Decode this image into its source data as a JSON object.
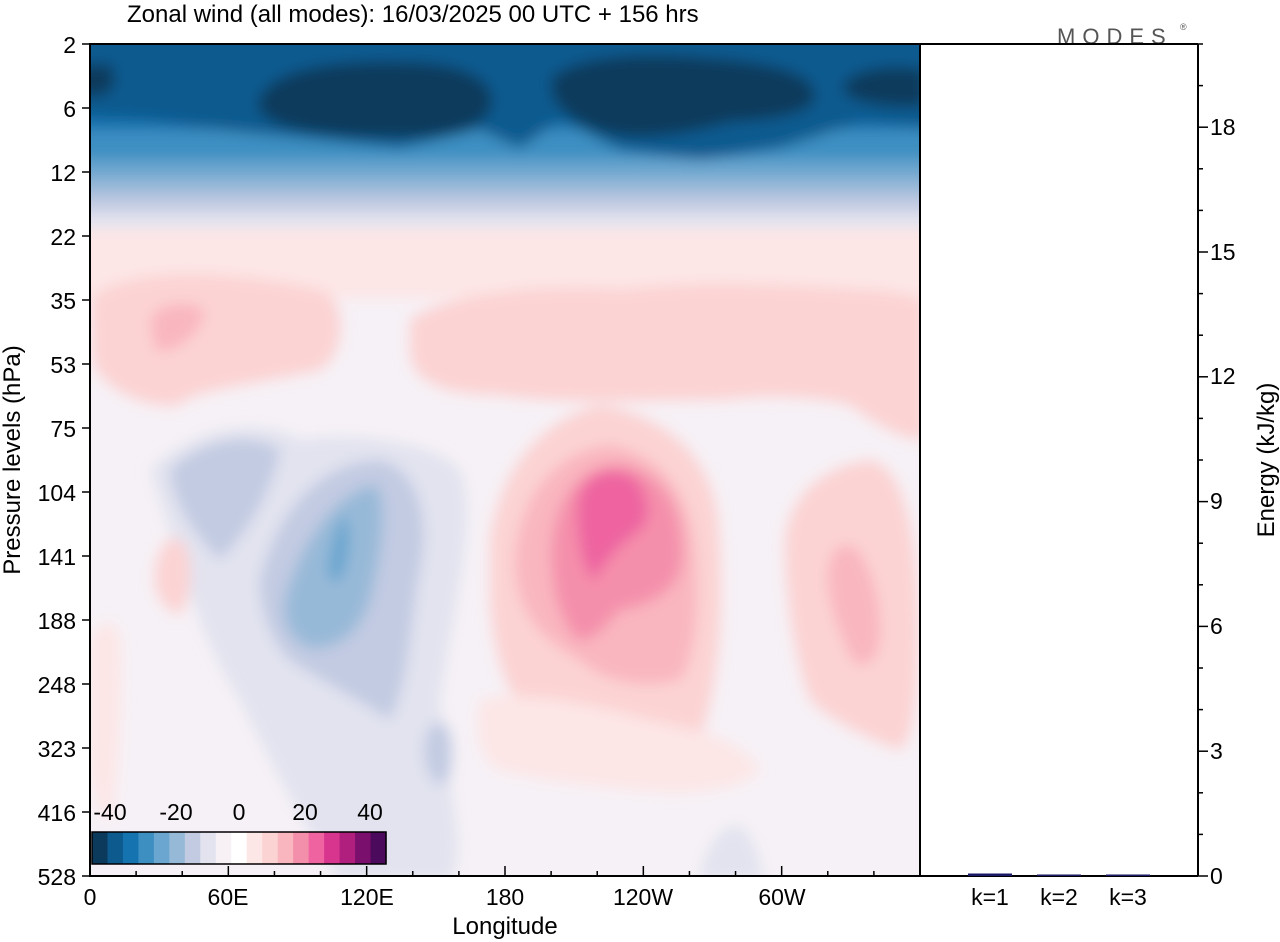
{
  "chart_data": [
    {
      "type": "heatmap",
      "title": "Zonal wind (all modes):  16/03/2025  00 UTC  + 156 hrs",
      "xlabel": "Longitude",
      "ylabel": "Pressure levels (hPa)",
      "x_ticks": [
        "0",
        "60E",
        "120E",
        "180",
        "120W",
        "60W"
      ],
      "x_range_deg": [
        0,
        360
      ],
      "y_ticks": [
        "2",
        "6",
        "12",
        "22",
        "35",
        "53",
        "75",
        "104",
        "141",
        "188",
        "248",
        "323",
        "416",
        "528"
      ],
      "colorbar": {
        "labels": [
          "-40",
          "-20",
          "0",
          "20",
          "40"
        ],
        "levels": [
          -45,
          -40,
          -35,
          -30,
          -25,
          -20,
          -15,
          -10,
          -5,
          0,
          5,
          10,
          15,
          20,
          25,
          30,
          35,
          40,
          45
        ],
        "colors": [
          "#0b3a5c",
          "#0d5a8f",
          "#1573b0",
          "#3d8fc2",
          "#6aa6cf",
          "#97b9d8",
          "#c2cbe2",
          "#e2e3ef",
          "#f7f1f6",
          "#ffffff",
          "#fde6e6",
          "#fcd3d3",
          "#f9b6bf",
          "#f48fab",
          "#ee63a0",
          "#d8358f",
          "#b01f7d",
          "#7b0f6e",
          "#4b0a5c"
        ]
      },
      "features": [
        {
          "lon": 70,
          "level": 4,
          "value": -45
        },
        {
          "lon": 240,
          "level": 4,
          "value": -45
        },
        {
          "lon": 345,
          "level": 4,
          "value": -45
        },
        {
          "lon": 110,
          "level": 135,
          "value": -25
        },
        {
          "lon": 235,
          "level": 125,
          "value": 30
        },
        {
          "lon": 330,
          "level": 170,
          "value": 15
        },
        {
          "lon": 30,
          "level": 42,
          "value": 15
        }
      ]
    },
    {
      "type": "bar",
      "ylabel": "Energy (kJ/kg)",
      "categories": [
        "k=1",
        "k=2",
        "k=3"
      ],
      "values": [
        0.06,
        0.02,
        0.02
      ],
      "ylim": [
        0,
        20
      ],
      "y_ticks": [
        "0",
        "3",
        "6",
        "9",
        "12",
        "15",
        "18"
      ],
      "bar_color": "#1a1a66"
    }
  ],
  "watermark": "MODES"
}
